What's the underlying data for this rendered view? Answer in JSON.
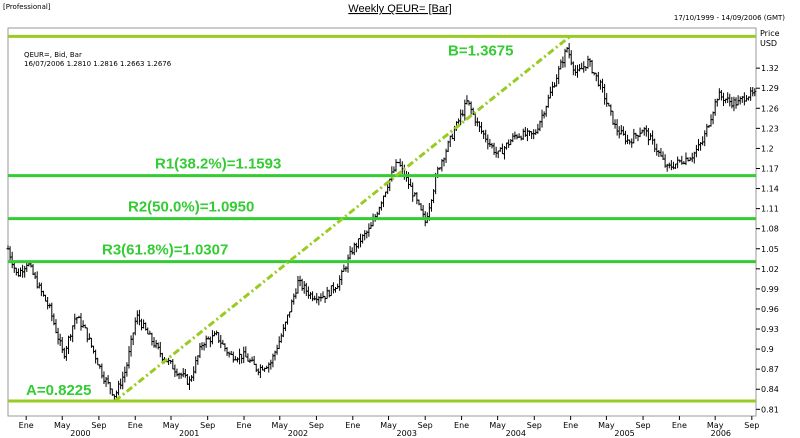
{
  "header": {
    "edition": "[Professional]",
    "title": "Weekly QEUR= [Bar]",
    "date_range": "17/10/1999 - 14/09/2006 (GMT)"
  },
  "info": {
    "line1": "QEUR=, Bid, Bar",
    "line2": "16/07/2006  1.2810  1.2816  1.2663  1.2676"
  },
  "colors": {
    "background": "#ffffff",
    "bars": "#000000",
    "fib_line": "#33cc33",
    "end_line": "#99cc22",
    "trend_line": "#99cc22",
    "text": "#000000"
  },
  "chart_data": {
    "type": "bar",
    "title": "Weekly QEUR= [Bar]",
    "ylabel": "Price USD",
    "ylabel_lines": [
      "Price",
      "USD"
    ],
    "ylim": [
      0.8,
      1.38
    ],
    "yticks": [
      1.32,
      1.29,
      1.26,
      1.23,
      1.2,
      1.17,
      1.14,
      1.11,
      1.08,
      1.05,
      1.02,
      0.99,
      0.96,
      0.93,
      0.9,
      0.87,
      0.84,
      0.81
    ],
    "ytick_labels": [
      "1.32",
      "1.29",
      "1.26",
      "1.23",
      "1.2",
      "1.17",
      "1.14",
      "1.11",
      "1.08",
      "1.05",
      "1.02",
      "0.99",
      "0.96",
      "0.93",
      "0.9",
      "0.87",
      "0.84",
      "0.81"
    ],
    "xlim": [
      "1999-11-01",
      "2006-09-15"
    ],
    "x_month_ticks": [
      {
        "date": "2000-01-01",
        "label": "Ene"
      },
      {
        "date": "2000-05-01",
        "label": "May"
      },
      {
        "date": "2000-09-01",
        "label": "Sep"
      },
      {
        "date": "2001-01-01",
        "label": "Ene"
      },
      {
        "date": "2001-05-01",
        "label": "May"
      },
      {
        "date": "2001-09-01",
        "label": "Sep"
      },
      {
        "date": "2002-01-01",
        "label": "Ene"
      },
      {
        "date": "2002-05-01",
        "label": "May"
      },
      {
        "date": "2002-09-01",
        "label": "Sep"
      },
      {
        "date": "2003-01-01",
        "label": "Ene"
      },
      {
        "date": "2003-05-01",
        "label": "May"
      },
      {
        "date": "2003-09-01",
        "label": "Sep"
      },
      {
        "date": "2004-01-01",
        "label": "Ene"
      },
      {
        "date": "2004-05-01",
        "label": "May"
      },
      {
        "date": "2004-09-01",
        "label": "Sep"
      },
      {
        "date": "2005-01-01",
        "label": "Ene"
      },
      {
        "date": "2005-05-01",
        "label": "May"
      },
      {
        "date": "2005-09-01",
        "label": "Sep"
      },
      {
        "date": "2006-01-01",
        "label": "Ene"
      },
      {
        "date": "2006-05-01",
        "label": "May"
      },
      {
        "date": "2006-09-01",
        "label": "Sep"
      }
    ],
    "x_year_ticks": [
      {
        "date": "2000-07-01",
        "label": "2000"
      },
      {
        "date": "2001-07-01",
        "label": "2001"
      },
      {
        "date": "2002-07-01",
        "label": "2002"
      },
      {
        "date": "2003-07-01",
        "label": "2003"
      },
      {
        "date": "2004-07-01",
        "label": "2004"
      },
      {
        "date": "2005-07-01",
        "label": "2005"
      },
      {
        "date": "2006-05-20",
        "label": "2006"
      }
    ],
    "series": [
      {
        "name": "QEUR=",
        "style": "ohlc-weekly",
        "anchors": [
          [
            "1999-11-01",
            1.05
          ],
          [
            "1999-12-01",
            1.01
          ],
          [
            "2000-01-05",
            1.03
          ],
          [
            "2000-02-15",
            0.99
          ],
          [
            "2000-03-20",
            0.96
          ],
          [
            "2000-05-05",
            0.89
          ],
          [
            "2000-06-15",
            0.95
          ],
          [
            "2000-07-15",
            0.93
          ],
          [
            "2000-08-20",
            0.89
          ],
          [
            "2000-09-15",
            0.86
          ],
          [
            "2000-10-25",
            0.83
          ],
          [
            "2000-12-01",
            0.87
          ],
          [
            "2001-01-05",
            0.95
          ],
          [
            "2001-02-15",
            0.92
          ],
          [
            "2001-04-01",
            0.89
          ],
          [
            "2001-05-15",
            0.87
          ],
          [
            "2001-07-01",
            0.85
          ],
          [
            "2001-08-15",
            0.91
          ],
          [
            "2001-10-01",
            0.92
          ],
          [
            "2001-11-15",
            0.89
          ],
          [
            "2002-01-01",
            0.89
          ],
          [
            "2002-02-15",
            0.87
          ],
          [
            "2002-04-01",
            0.88
          ],
          [
            "2002-05-15",
            0.93
          ],
          [
            "2002-07-01",
            1.0
          ],
          [
            "2002-08-15",
            0.98
          ],
          [
            "2002-10-01",
            0.98
          ],
          [
            "2002-11-15",
            1.0
          ],
          [
            "2003-01-01",
            1.05
          ],
          [
            "2003-03-01",
            1.08
          ],
          [
            "2003-05-01",
            1.15
          ],
          [
            "2003-06-01",
            1.18
          ],
          [
            "2003-07-15",
            1.14
          ],
          [
            "2003-09-01",
            1.09
          ],
          [
            "2003-10-15",
            1.17
          ],
          [
            "2003-12-01",
            1.22
          ],
          [
            "2004-01-20",
            1.27
          ],
          [
            "2004-03-01",
            1.23
          ],
          [
            "2004-05-01",
            1.19
          ],
          [
            "2004-07-01",
            1.22
          ],
          [
            "2004-09-01",
            1.22
          ],
          [
            "2004-10-15",
            1.27
          ],
          [
            "2004-12-20",
            1.35
          ],
          [
            "2005-01-20",
            1.31
          ],
          [
            "2005-03-01",
            1.33
          ],
          [
            "2005-04-15",
            1.29
          ],
          [
            "2005-06-01",
            1.23
          ],
          [
            "2005-07-15",
            1.21
          ],
          [
            "2005-09-01",
            1.23
          ],
          [
            "2005-10-15",
            1.2
          ],
          [
            "2005-11-20",
            1.17
          ],
          [
            "2006-01-01",
            1.18
          ],
          [
            "2006-02-15",
            1.19
          ],
          [
            "2006-03-20",
            1.21
          ],
          [
            "2006-05-10",
            1.28
          ],
          [
            "2006-06-20",
            1.27
          ],
          [
            "2006-07-16",
            1.2676
          ],
          [
            "2006-08-15",
            1.28
          ],
          [
            "2006-09-14",
            1.28
          ]
        ]
      }
    ],
    "horizontal_lines": [
      {
        "value": 1.3675,
        "label": "B=1.3675",
        "kind": "end"
      },
      {
        "value": 1.1593,
        "label": "R1(38.2%)=1.1593",
        "kind": "fib"
      },
      {
        "value": 1.095,
        "label": "R2(50.0%)=1.0950",
        "kind": "fib"
      },
      {
        "value": 1.0307,
        "label": "R3(61.8%)=1.0307",
        "kind": "fib"
      },
      {
        "value": 0.8225,
        "label": "A=0.8225",
        "kind": "end"
      }
    ],
    "trend_line": {
      "from": [
        "2000-10-25",
        0.8225
      ],
      "to": [
        "2004-12-30",
        1.3675
      ]
    },
    "grid": false,
    "legend": "none"
  }
}
